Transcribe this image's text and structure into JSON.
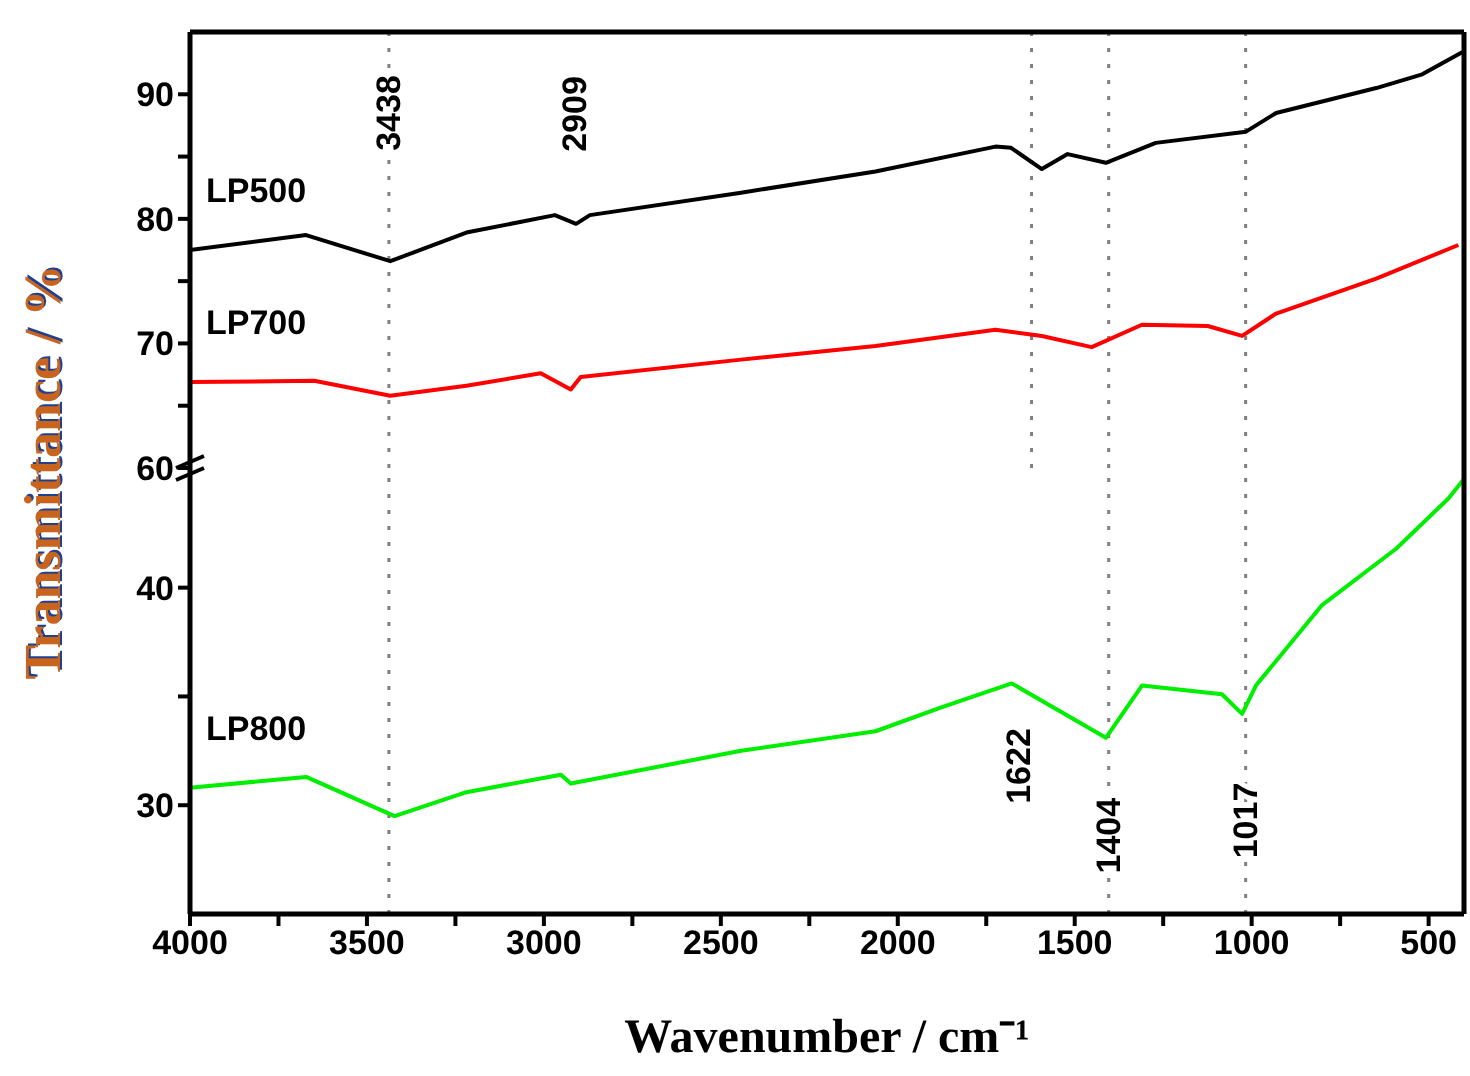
{
  "chart_data": [
    {
      "type": "line",
      "ylabel": "Transmittance / %",
      "xlim": [
        4000,
        400
      ],
      "ylim": [
        60,
        95
      ],
      "yticks": [
        60,
        {
          "value": 65,
          "label": null
        },
        70,
        {
          "value": 75,
          "label": null
        },
        80,
        {
          "value": 85,
          "label": null
        },
        90
      ],
      "tick_labels": "y",
      "line_style": "solid",
      "series": [
        {
          "name": "LP500",
          "color": "#000000",
          "x": [
            4000,
            3672,
            3434,
            3219,
            2969,
            2909,
            2870,
            2443,
            2063,
            1724,
            1680,
            1593,
            1520,
            1412,
            1271,
            1016,
            931,
            648,
            518,
            404
          ],
          "values": [
            77.5,
            78.7,
            76.6,
            78.9,
            80.3,
            79.6,
            80.3,
            82.1,
            83.8,
            85.8,
            85.7,
            84.0,
            85.2,
            84.5,
            86.1,
            87.0,
            88.5,
            90.5,
            91.6,
            93.4
          ]
        },
        {
          "name": "LP700",
          "color": "#ff0000",
          "x": [
            4000,
            3649,
            3434,
            3219,
            3009,
            2924,
            2896,
            2443,
            2063,
            1724,
            1593,
            1452,
            1310,
            1124,
            1027,
            931,
            648,
            416
          ],
          "values": [
            66.9,
            67.0,
            65.8,
            66.6,
            67.6,
            66.3,
            67.3,
            68.7,
            69.8,
            71.1,
            70.6,
            69.7,
            71.5,
            71.4,
            70.6,
            72.4,
            75.2,
            77.9
          ]
        }
      ],
      "ref_lines": [
        {
          "axis": "x",
          "value": 3438,
          "line_style": "dotted",
          "color": "#808080"
        },
        {
          "axis": "x",
          "value": 1622,
          "line_style": "dotted",
          "color": "#808080"
        },
        {
          "axis": "x",
          "value": 1404,
          "line_style": "dotted",
          "color": "#808080"
        },
        {
          "axis": "x",
          "value": 1017,
          "line_style": "dotted",
          "color": "#808080"
        }
      ],
      "annotations": [
        {
          "text": "3438",
          "x": 3438,
          "y": 88.5
        },
        "2909"
      ]
    },
    {
      "type": "line",
      "xlabel": "Wavenumber / cm⁻¹",
      "xlim": [
        4000,
        400
      ],
      "xticks": [
        4000,
        {
          "value": 3750,
          "label": null
        },
        3500,
        {
          "value": 3250,
          "label": null
        },
        3000,
        {
          "value": 2750,
          "label": null
        },
        2500,
        {
          "value": 2250,
          "label": null
        },
        2000,
        {
          "value": 1750,
          "label": null
        },
        1500,
        {
          "value": 1250,
          "label": null
        },
        1000,
        {
          "value": 750,
          "label": null
        },
        500
      ],
      "ylim": [
        25,
        45.5
      ],
      "yticks": [
        30,
        {
          "value": 35,
          "label": null
        },
        40
      ],
      "line_style": "solid",
      "series": [
        {
          "name": "LP800",
          "color": "#00ee00",
          "x": [
            4000,
            3672,
            3422,
            3219,
            2952,
            2924,
            2443,
            2063,
            1877,
            1678,
            1412,
            1310,
            1084,
            1027,
            988,
            801,
            591,
            444,
            400
          ],
          "values": [
            30.8,
            31.3,
            29.5,
            30.6,
            31.4,
            31.0,
            32.5,
            33.4,
            34.5,
            35.6,
            33.1,
            35.5,
            35.1,
            34.2,
            35.5,
            39.2,
            41.8,
            44.1,
            45.0
          ]
        }
      ],
      "ref_lines": [
        {
          "axis": "x",
          "value": 3438,
          "line_style": "dotted",
          "color": "#808080"
        },
        {
          "axis": "x",
          "value": 1404,
          "line_style": "dotted",
          "color": "#808080"
        },
        {
          "axis": "x",
          "value": 1017,
          "line_style": "dotted",
          "color": "#808080"
        }
      ],
      "annotations": [
        "1622",
        {
          "text": "1404",
          "x": 1404,
          "y": 28.6
        },
        {
          "text": "1017",
          "x": 1017,
          "y": 29.3
        }
      ]
    }
  ]
}
